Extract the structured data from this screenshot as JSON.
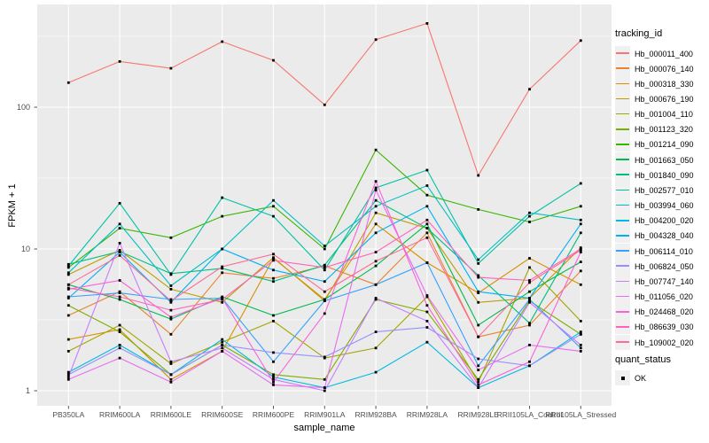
{
  "chart_data": {
    "type": "line",
    "title": "",
    "xlabel": "sample_name",
    "ylabel": "FPKM + 1",
    "x_categories": [
      "PB350LA",
      "RRIM600LA",
      "RRIM600LE",
      "RRIM600SE",
      "RRIM600PE",
      "RRIM901LA",
      "RRIM928BA",
      "RRIM928LA",
      "RRIM928LE",
      "RRII105LA_Control",
      "RRII105LA_Stressed"
    ],
    "y_scale": "log10",
    "y_ticks": [
      "1",
      "10",
      "100"
    ],
    "y_tick_values": [
      1,
      10,
      100
    ],
    "y_minor_values": [
      3.162,
      31.62,
      316.2
    ],
    "ylim": [
      0.8,
      530
    ],
    "grid": true,
    "legend_position": "right",
    "panel_bg": "#EBEBEB",
    "grid_color": "#FFFFFF",
    "axis_text_color": "#4D4D4D",
    "tick_color": "#555555",
    "point_color": "#000000",
    "legend_key_bg": "#F0F0F0",
    "legend_title": "tracking_id",
    "legend2_title": "quant_status",
    "legend2_items": [
      {
        "label": "OK",
        "shape": "square",
        "color": "#000000"
      }
    ],
    "series": [
      {
        "name": "Hb_000011_400",
        "color": "#F8766D",
        "values": [
          149,
          210,
          188,
          290,
          214,
          104,
          300,
          390,
          33,
          134,
          295
        ]
      },
      {
        "name": "Hb_000076_140",
        "color": "#EA8331",
        "values": [
          3.4,
          5.0,
          2.5,
          6.8,
          6.2,
          7.6,
          5.6,
          13,
          2.4,
          2.9,
          7.0
        ]
      },
      {
        "name": "Hb_000318_330",
        "color": "#D89000",
        "values": [
          2.3,
          2.7,
          1.2,
          1.9,
          8.6,
          4.4,
          15,
          8.0,
          4.9,
          8.6,
          5.6
        ]
      },
      {
        "name": "Hb_000676_190",
        "color": "#C09B00",
        "values": [
          6.6,
          9.8,
          5.2,
          4.2,
          8.7,
          4.3,
          18,
          14,
          4.2,
          4.5,
          10.2
        ]
      },
      {
        "name": "Hb_001004_110",
        "color": "#A3A500",
        "values": [
          1.9,
          2.9,
          1.55,
          2.2,
          3.1,
          1.7,
          2.0,
          4.6,
          1.15,
          7.4,
          3.1
        ]
      },
      {
        "name": "Hb_001123_320",
        "color": "#7CAE00",
        "values": [
          4.0,
          2.6,
          1.3,
          2.1,
          1.3,
          1.2,
          4.4,
          3.6,
          1.2,
          4.3,
          2.5
        ]
      },
      {
        "name": "Hb_001214_090",
        "color": "#39B600",
        "values": [
          7.4,
          14,
          12,
          17,
          20,
          10,
          50,
          24,
          19,
          15.5,
          20
        ]
      },
      {
        "name": "Hb_001663_050",
        "color": "#00BB4E",
        "values": [
          5.6,
          4.4,
          3.2,
          4.6,
          3.4,
          4.4,
          7.6,
          15,
          2.9,
          5.0,
          8.1
        ]
      },
      {
        "name": "Hb_001840_090",
        "color": "#00BF7D",
        "values": [
          7.8,
          9.6,
          6.7,
          7.3,
          5.9,
          7.7,
          22,
          14,
          6.5,
          3.0,
          13
        ]
      },
      {
        "name": "Hb_002577_010",
        "color": "#00C1A3",
        "values": [
          7.6,
          21,
          6.6,
          23,
          17,
          7.1,
          27,
          36,
          7.9,
          17,
          29
        ]
      },
      {
        "name": "Hb_003994_060",
        "color": "#00BFC4",
        "values": [
          6.8,
          15,
          5.5,
          10,
          22,
          10.5,
          20,
          28,
          8.4,
          18,
          16
        ]
      },
      {
        "name": "Hb_004200_020",
        "color": "#00BAE0",
        "values": [
          1.35,
          2.1,
          1.3,
          2.3,
          1.25,
          1.05,
          1.35,
          2.2,
          1.05,
          1.5,
          2.6
        ]
      },
      {
        "name": "Hb_004328_040",
        "color": "#00B0F6",
        "values": [
          4.5,
          9.5,
          4.2,
          10,
          7.1,
          5.9,
          13,
          20,
          5.0,
          4.5,
          15
        ]
      },
      {
        "name": "Hb_006114_010",
        "color": "#35A2FF",
        "values": [
          4.6,
          4.9,
          4.4,
          4.5,
          1.6,
          4.3,
          5.6,
          8.0,
          1.5,
          4.4,
          2.0
        ]
      },
      {
        "name": "Hb_006824_050",
        "color": "#9590FF",
        "values": [
          1.3,
          2.0,
          1.3,
          2.1,
          1.86,
          1.73,
          2.6,
          2.8,
          1.68,
          1.5,
          2.5
        ]
      },
      {
        "name": "Hb_007747_140",
        "color": "#C77CFF",
        "values": [
          1.25,
          11,
          1.6,
          2.0,
          1.2,
          1.0,
          4.5,
          3.1,
          1.05,
          4.2,
          2.1
        ]
      },
      {
        "name": "Hb_011056_020",
        "color": "#E76BF3",
        "values": [
          1.2,
          1.7,
          1.15,
          1.9,
          1.1,
          1.05,
          26,
          4.7,
          1.4,
          2.1,
          1.9
        ]
      },
      {
        "name": "Hb_024468_020",
        "color": "#FA62DB",
        "values": [
          5.2,
          6.0,
          3.3,
          4.5,
          1.15,
          3.5,
          30,
          4.0,
          1.1,
          1.6,
          9.5
        ]
      },
      {
        "name": "Hb_086639_030",
        "color": "#FF62BC",
        "values": [
          5.3,
          4.6,
          3.7,
          4.4,
          8.3,
          7.4,
          9.5,
          16,
          6.3,
          6.0,
          10
        ]
      },
      {
        "name": "Hb_109002_020",
        "color": "#FF6A98",
        "values": [
          5.6,
          9.0,
          4.3,
          7.5,
          9.2,
          5.0,
          8.2,
          12,
          2.4,
          5.8,
          9.8
        ]
      }
    ]
  }
}
